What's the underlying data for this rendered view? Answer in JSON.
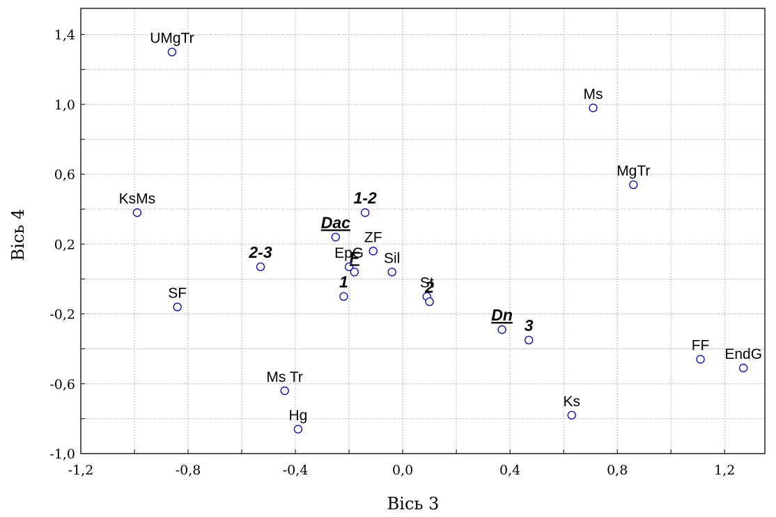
{
  "chart_data": {
    "type": "scatter",
    "title": "",
    "xlabel": "Вісь 3",
    "ylabel": "Вісь 4",
    "xlim": [
      -1.2,
      1.35
    ],
    "ylim": [
      -1.0,
      1.55
    ],
    "xticks": [
      -1.2,
      -1.0,
      -0.8,
      -0.6,
      -0.4,
      -0.2,
      0.0,
      0.2,
      0.4,
      0.6,
      0.8,
      1.0,
      1.2
    ],
    "yticks": [
      -1.0,
      -0.8,
      -0.6,
      -0.4,
      -0.2,
      0.0,
      0.2,
      0.4,
      0.6,
      0.8,
      1.0,
      1.2,
      1.4
    ],
    "xtick_labels": [
      {
        "v": -1.2,
        "t": "-1,2"
      },
      {
        "v": -0.8,
        "t": "-0,8"
      },
      {
        "v": -0.4,
        "t": "-0,4"
      },
      {
        "v": 0.0,
        "t": "0,0"
      },
      {
        "v": 0.4,
        "t": "0,4"
      },
      {
        "v": 0.8,
        "t": "0,8"
      },
      {
        "v": 1.2,
        "t": "1,2"
      }
    ],
    "ytick_labels": [
      {
        "v": -1.0,
        "t": "-1,0"
      },
      {
        "v": -0.6,
        "t": "-0,6"
      },
      {
        "v": -0.2,
        "t": "-0,2"
      },
      {
        "v": 0.2,
        "t": "0,2"
      },
      {
        "v": 0.6,
        "t": "0,6"
      },
      {
        "v": 1.0,
        "t": "1,0"
      },
      {
        "v": 1.4,
        "t": "1,4"
      }
    ],
    "grid": true,
    "marker_color": "#0000cc",
    "points": [
      {
        "label": "UMgTr",
        "x": -0.86,
        "y": 1.3
      },
      {
        "label": "Ms",
        "x": 0.71,
        "y": 0.98
      },
      {
        "label": "MgTr",
        "x": 0.86,
        "y": 0.54
      },
      {
        "label": "KsMs",
        "x": -0.99,
        "y": 0.38
      },
      {
        "label": "1-2",
        "x": -0.14,
        "y": 0.38,
        "style": "bold"
      },
      {
        "label": "Dac",
        "x": -0.25,
        "y": 0.24,
        "style": "bold-underline"
      },
      {
        "label": "ZF",
        "x": -0.11,
        "y": 0.16
      },
      {
        "label": "EpG",
        "x": -0.2,
        "y": 0.07
      },
      {
        "label": "F",
        "x": -0.18,
        "y": 0.04,
        "style": "bold-underline"
      },
      {
        "label": "Sil",
        "x": -0.04,
        "y": 0.04
      },
      {
        "label": "2-3",
        "x": -0.53,
        "y": 0.07,
        "style": "bold"
      },
      {
        "label": "1",
        "x": -0.22,
        "y": -0.1,
        "style": "bold"
      },
      {
        "label": "St",
        "x": 0.09,
        "y": -0.1
      },
      {
        "label": "2",
        "x": 0.1,
        "y": -0.13,
        "style": "bold"
      },
      {
        "label": "SF",
        "x": -0.84,
        "y": -0.16
      },
      {
        "label": "Dn",
        "x": 0.37,
        "y": -0.29,
        "style": "bold-underline"
      },
      {
        "label": "3",
        "x": 0.47,
        "y": -0.35,
        "style": "bold"
      },
      {
        "label": "FF",
        "x": 1.11,
        "y": -0.46
      },
      {
        "label": "EndG",
        "x": 1.27,
        "y": -0.51
      },
      {
        "label": "Ms Tr",
        "x": -0.44,
        "y": -0.64
      },
      {
        "label": "Ks",
        "x": 0.63,
        "y": -0.78
      },
      {
        "label": "Hg",
        "x": -0.39,
        "y": -0.86
      }
    ]
  }
}
